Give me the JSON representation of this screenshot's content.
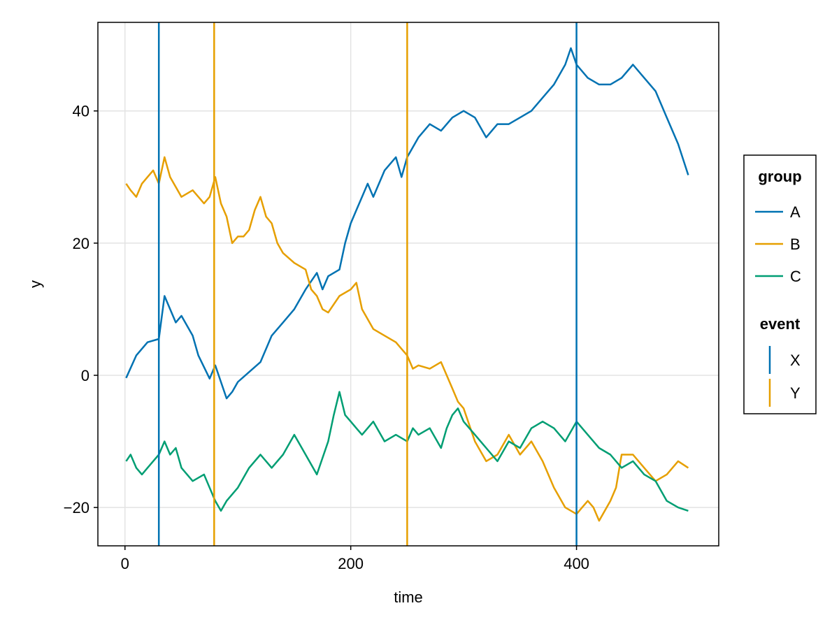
{
  "chart_data": {
    "type": "line",
    "xlabel": "time",
    "ylabel": "y",
    "xlim": [
      -24,
      526
    ],
    "ylim": [
      -25.8,
      53.4
    ],
    "xticks": [
      0,
      200,
      400
    ],
    "yticks": [
      -20,
      0,
      20,
      40
    ],
    "grid": true,
    "legend_placement": "right",
    "series": [
      {
        "name": "A",
        "color": "#0072B2",
        "x": [
          1,
          10,
          20,
          30,
          35,
          45,
          50,
          60,
          65,
          75,
          80,
          85,
          90,
          95,
          100,
          110,
          120,
          130,
          140,
          150,
          160,
          170,
          175,
          180,
          190,
          195,
          200,
          205,
          210,
          215,
          220,
          225,
          230,
          240,
          245,
          250,
          260,
          270,
          280,
          290,
          300,
          310,
          320,
          330,
          340,
          350,
          360,
          370,
          380,
          390,
          395,
          400,
          410,
          420,
          430,
          440,
          450,
          460,
          470,
          480,
          490,
          499
        ],
        "values": [
          -0.4,
          3.0,
          5.0,
          5.5,
          12.0,
          8.0,
          9.0,
          6.0,
          3.0,
          -0.5,
          1.5,
          -1.0,
          -3.5,
          -2.5,
          -1.0,
          0.5,
          2.0,
          6.0,
          8.0,
          10.0,
          13.0,
          15.5,
          13.0,
          15.0,
          16.0,
          20.0,
          23.0,
          25.0,
          27.0,
          29.0,
          27.0,
          29.0,
          31.0,
          33.0,
          30.0,
          33.0,
          36.0,
          38.0,
          37.0,
          39.0,
          40.0,
          39.0,
          36.0,
          38.0,
          38.0,
          39.0,
          40.0,
          42.0,
          44.0,
          47.0,
          49.5,
          47.0,
          45.0,
          44.0,
          44.0,
          45.0,
          47.0,
          45.0,
          43.0,
          39.0,
          35.0,
          30.3
        ]
      },
      {
        "name": "B",
        "color": "#E69F00",
        "x": [
          1,
          5,
          10,
          15,
          20,
          25,
          30,
          35,
          40,
          50,
          60,
          70,
          75,
          80,
          85,
          90,
          95,
          100,
          105,
          110,
          115,
          120,
          125,
          130,
          135,
          140,
          150,
          160,
          165,
          170,
          175,
          180,
          190,
          200,
          205,
          210,
          220,
          230,
          240,
          245,
          250,
          255,
          260,
          270,
          280,
          285,
          290,
          295,
          300,
          310,
          320,
          330,
          340,
          350,
          360,
          370,
          380,
          390,
          400,
          405,
          410,
          415,
          420,
          430,
          435,
          440,
          450,
          460,
          470,
          480,
          490,
          499
        ],
        "values": [
          29.0,
          28.0,
          27.0,
          29.0,
          30.0,
          31.0,
          29.0,
          33.0,
          30.0,
          27.0,
          28.0,
          26.0,
          27.0,
          30.0,
          26.0,
          24.0,
          20.0,
          21.0,
          21.0,
          22.0,
          25.0,
          27.0,
          24.0,
          23.0,
          20.0,
          18.5,
          17.0,
          16.0,
          13.0,
          12.0,
          10.0,
          9.5,
          12.0,
          13.0,
          14.0,
          10.0,
          7.0,
          6.0,
          5.0,
          4.0,
          3.0,
          1.0,
          1.5,
          1.0,
          2.0,
          0.0,
          -2.0,
          -4.0,
          -5.0,
          -10.0,
          -13.0,
          -12.0,
          -9.0,
          -12.0,
          -10.0,
          -13.0,
          -17.0,
          -20.0,
          -21.0,
          -20.0,
          -19.0,
          -20.0,
          -22.0,
          -19.0,
          -17.0,
          -12.0,
          -12.0,
          -14.0,
          -16.0,
          -15.0,
          -13.0,
          -14.0
        ]
      },
      {
        "name": "C",
        "color": "#009E73",
        "x": [
          1,
          5,
          10,
          15,
          20,
          25,
          30,
          35,
          40,
          45,
          50,
          60,
          70,
          75,
          80,
          85,
          90,
          100,
          110,
          120,
          130,
          140,
          150,
          160,
          170,
          180,
          185,
          190,
          195,
          200,
          205,
          210,
          220,
          230,
          240,
          250,
          255,
          260,
          270,
          280,
          285,
          290,
          295,
          300,
          310,
          320,
          330,
          340,
          350,
          360,
          370,
          380,
          390,
          400,
          410,
          420,
          430,
          440,
          450,
          460,
          470,
          480,
          490,
          499
        ],
        "values": [
          -13.0,
          -12.0,
          -14.0,
          -15.0,
          -14.0,
          -13.0,
          -12.0,
          -10.0,
          -12.0,
          -11.0,
          -14.0,
          -16.0,
          -15.0,
          -17.0,
          -19.0,
          -20.5,
          -19.0,
          -17.0,
          -14.0,
          -12.0,
          -14.0,
          -12.0,
          -9.0,
          -12.0,
          -15.0,
          -10.0,
          -6.0,
          -2.5,
          -6.0,
          -7.0,
          -8.0,
          -9.0,
          -7.0,
          -10.0,
          -9.0,
          -10.0,
          -8.0,
          -9.0,
          -8.0,
          -11.0,
          -8.0,
          -6.0,
          -5.0,
          -7.0,
          -9.0,
          -11.0,
          -13.0,
          -10.0,
          -11.0,
          -8.0,
          -7.0,
          -8.0,
          -10.0,
          -7.0,
          -9.0,
          -11.0,
          -12.0,
          -14.0,
          -13.0,
          -15.0,
          -16.0,
          -19.0,
          -20.0,
          -20.5
        ]
      }
    ],
    "events": [
      {
        "name": "X",
        "color": "#0072B2",
        "x": [
          30,
          400
        ]
      },
      {
        "name": "Y",
        "color": "#E69F00",
        "x": [
          79,
          250
        ]
      }
    ],
    "legend": {
      "group_title": "group",
      "group_entries": [
        "A",
        "B",
        "C"
      ],
      "event_title": "event",
      "event_entries": [
        "X",
        "Y"
      ]
    }
  }
}
